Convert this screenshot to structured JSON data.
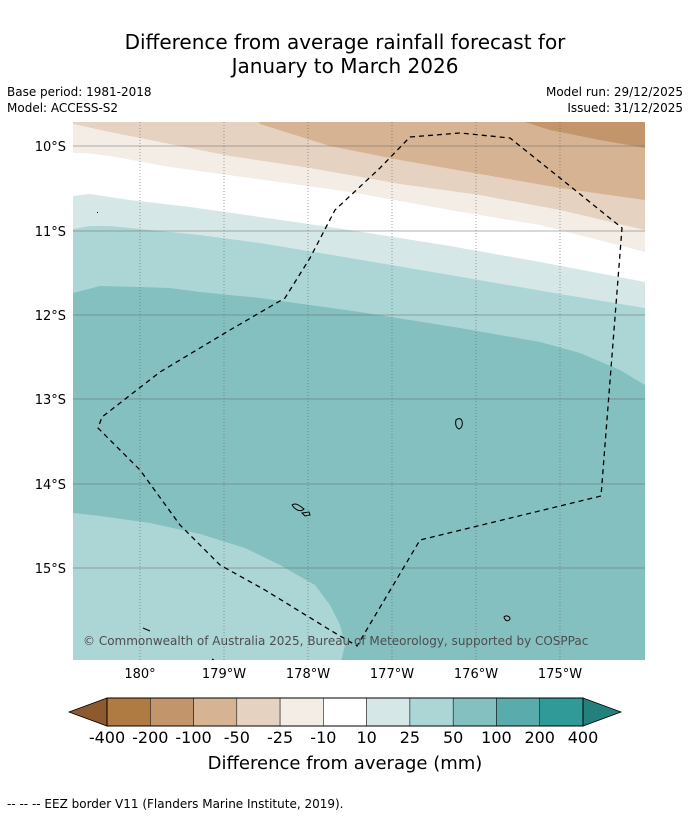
{
  "title": {
    "line1": "Difference from average rainfall forecast for",
    "line2": "January to March 2026"
  },
  "meta": {
    "base_period": "Base period: 1981-2018",
    "model": "Model: ACCESS-S2",
    "model_run": "Model run: 29/12/2025",
    "issued": "Issued: 31/12/2025"
  },
  "map": {
    "lat_labels": [
      "10°S",
      "11°S",
      "12°S",
      "13°S",
      "14°S",
      "15°S"
    ],
    "lon_labels": [
      "180°",
      "179°W",
      "178°W",
      "177°W",
      "176°W",
      "175°W"
    ],
    "copyright": "© Commonwealth of Australia 2025, Bureau of Meteorology, supported by COSPPac"
  },
  "legend": {
    "labels": [
      "-400",
      "-200",
      "-100",
      "-50",
      "-25",
      "-10",
      "10",
      "25",
      "50",
      "100",
      "200",
      "400"
    ],
    "colors": [
      "#8c5a2e",
      "#b07a43",
      "#c3956a",
      "#d5b393",
      "#e6d2c0",
      "#f3ede6",
      "#ffffff",
      "#d5e8e7",
      "#acd6d6",
      "#84c0c0",
      "#5aabab",
      "#2f9a97",
      "#23807d"
    ],
    "title": "Difference from average (mm)"
  },
  "footnote": "--  --  -- EEZ border V11 (Flanders Marine Institute, 2019)."
}
